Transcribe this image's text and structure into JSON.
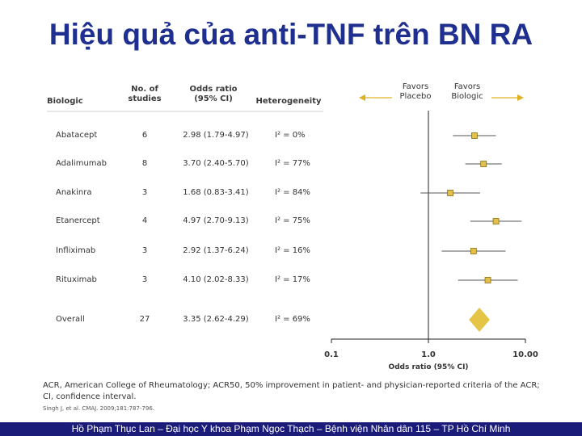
{
  "slide": {
    "title": "Hiệu quả của anti-TNF trên BN RA",
    "footer": "Hồ Phạm Thục Lan – Đại học Y khoa Phạm Ngọc Thạch – Bệnh viện Nhân dân 115 – TP Hồ Chí Minh"
  },
  "table": {
    "headers": {
      "biologic": "Biologic",
      "studies": "No. of studies",
      "odds_ratio": "Odds ratio (95% CI)",
      "heterogeneity": "Heterogeneity"
    }
  },
  "favors": {
    "left": "Favors Placebo",
    "right": "Favors Biologic"
  },
  "notes": {
    "line1": "ACR, American College of Rheumatology; ACR50, 50% improvement in patient- and physician-reported criteria of the ACR;",
    "line2": "CI, confidence interval.",
    "citation": "Singh J, et al. CMAJ. 2009;181:787-796."
  },
  "colors": {
    "marker": "#e2c04a",
    "marker_border": "#8a6d10",
    "diamond": "#e5c545",
    "title": "#1f2f8f",
    "footer_bg": "#1b1b7a"
  },
  "chart_data": {
    "type": "forest",
    "x_scale": "log",
    "xlim": [
      0.1,
      10
    ],
    "xticks": [
      "0.1",
      "1.0",
      "10.00"
    ],
    "xlabel": "Odds ratio (95% CI)",
    "reference_line": 1.0,
    "rows": [
      {
        "biologic": "Abatacept",
        "studies": "6",
        "or_text": "2.98 (1.79-4.97)",
        "het": "I² = 0%",
        "or": 2.98,
        "lo": 1.79,
        "hi": 4.97
      },
      {
        "biologic": "Adalimumab",
        "studies": "8",
        "or_text": "3.70 (2.40-5.70)",
        "het": "I² = 77%",
        "or": 3.7,
        "lo": 2.4,
        "hi": 5.7
      },
      {
        "biologic": "Anakinra",
        "studies": "3",
        "or_text": "1.68 (0.83-3.41)",
        "het": "I² = 84%",
        "or": 1.68,
        "lo": 0.83,
        "hi": 3.41
      },
      {
        "biologic": "Etanercept",
        "studies": "4",
        "or_text": "4.97 (2.70-9.13)",
        "het": "I² = 75%",
        "or": 4.97,
        "lo": 2.7,
        "hi": 9.13
      },
      {
        "biologic": "Infliximab",
        "studies": "3",
        "or_text": "2.92 (1.37-6.24)",
        "het": "I² = 16%",
        "or": 2.92,
        "lo": 1.37,
        "hi": 6.24
      },
      {
        "biologic": "Rituximab",
        "studies": "3",
        "or_text": "4.10 (2.02-8.33)",
        "het": "I² = 17%",
        "or": 4.1,
        "lo": 2.02,
        "hi": 8.33
      }
    ],
    "overall": {
      "biologic": "Overall",
      "studies": "27",
      "or_text": "3.35 (2.62-4.29)",
      "het": "I² = 69%",
      "or": 3.35,
      "lo": 2.62,
      "hi": 4.29
    }
  }
}
